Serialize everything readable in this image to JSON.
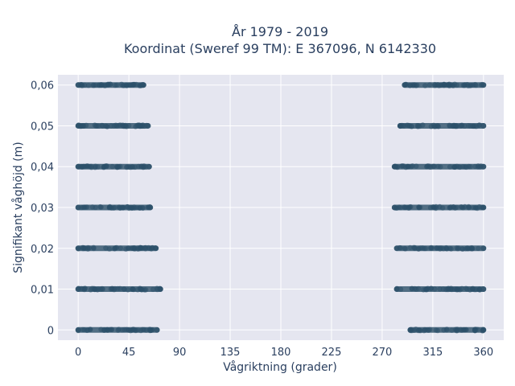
{
  "chart_data": {
    "type": "scatter",
    "title_lines": [
      "År 1979 - 2019",
      "Koordinat (Sweref 99 TM): E 367096, N 6142330"
    ],
    "xlabel": "Vågriktning (grader)",
    "ylabel": "Signifikant våghöjd (m)",
    "xlim": [
      -18,
      378
    ],
    "ylim": [
      -0.0025,
      0.0625
    ],
    "x_ticks": [
      0,
      45,
      90,
      135,
      180,
      225,
      270,
      315,
      360
    ],
    "x_tick_labels": [
      "0",
      "45",
      "90",
      "135",
      "180",
      "225",
      "270",
      "315",
      "360"
    ],
    "y_ticks": [
      0,
      0.01,
      0.02,
      0.03,
      0.04,
      0.05,
      0.06
    ],
    "y_tick_labels": [
      "0",
      "0,01",
      "0,02",
      "0,03",
      "0,04",
      "0,05",
      "0,06"
    ],
    "grid": true,
    "colors": {
      "plot_bg": "#e5e6f0",
      "grid": "#ffffff",
      "marker": "#2c5069",
      "text": "#2a3f5f"
    },
    "series": [
      {
        "values": [
          {
            "y": 0,
            "x_start": 0,
            "x_end": 70
          },
          {
            "y": 0,
            "x_start": 295,
            "x_end": 360
          },
          {
            "y": 0.01,
            "x_start": 0,
            "x_end": 73
          },
          {
            "y": 0.01,
            "x_start": 283,
            "x_end": 360
          },
          {
            "y": 0.02,
            "x_start": 0,
            "x_end": 69
          },
          {
            "y": 0.02,
            "x_start": 283,
            "x_end": 360
          },
          {
            "y": 0.03,
            "x_start": 0,
            "x_end": 64
          },
          {
            "y": 0.03,
            "x_start": 281,
            "x_end": 360
          },
          {
            "y": 0.04,
            "x_start": 0,
            "x_end": 63
          },
          {
            "y": 0.04,
            "x_start": 281,
            "x_end": 360
          },
          {
            "y": 0.05,
            "x_start": 0,
            "x_end": 62
          },
          {
            "y": 0.05,
            "x_start": 286,
            "x_end": 360
          },
          {
            "y": 0.06,
            "x_start": 0,
            "x_end": 58
          },
          {
            "y": 0.06,
            "x_start": 290,
            "x_end": 360
          }
        ]
      }
    ]
  }
}
